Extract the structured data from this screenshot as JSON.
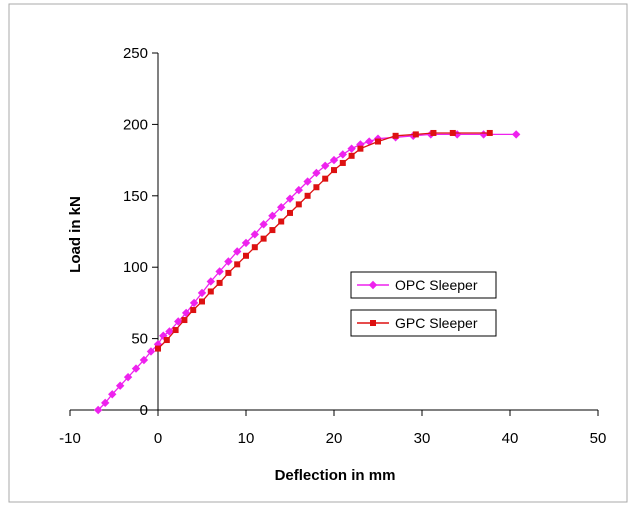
{
  "chart_data": {
    "type": "line",
    "title": "",
    "xlabel": "Deflection in mm",
    "ylabel": "Load in kN",
    "xlim": [
      -10,
      50
    ],
    "ylim": [
      0,
      250
    ],
    "xticks": [
      -10,
      0,
      10,
      20,
      30,
      40,
      50
    ],
    "yticks": [
      0,
      50,
      100,
      150,
      200,
      250
    ],
    "grid": false,
    "legend_position": "center-right",
    "series": [
      {
        "name": "OPC Sleeper",
        "color": "#ee22ee",
        "marker": "diamond",
        "points": [
          [
            -6.8,
            0
          ],
          [
            -6.0,
            5
          ],
          [
            -5.2,
            11
          ],
          [
            -4.3,
            17
          ],
          [
            -3.4,
            23
          ],
          [
            -2.5,
            29
          ],
          [
            -1.6,
            35
          ],
          [
            -0.8,
            41
          ],
          [
            0,
            46
          ],
          [
            0.6,
            52
          ],
          [
            1.3,
            55
          ],
          [
            2.3,
            62
          ],
          [
            3.2,
            68
          ],
          [
            4.1,
            75
          ],
          [
            5.0,
            82
          ],
          [
            6.0,
            90
          ],
          [
            7.0,
            97
          ],
          [
            8.0,
            104
          ],
          [
            9.0,
            111
          ],
          [
            10.0,
            117
          ],
          [
            11.0,
            123
          ],
          [
            12.0,
            130
          ],
          [
            13.0,
            136
          ],
          [
            14.0,
            142
          ],
          [
            15.0,
            148
          ],
          [
            16.0,
            154
          ],
          [
            17.0,
            160
          ],
          [
            18.0,
            166
          ],
          [
            19.0,
            171
          ],
          [
            20.0,
            175
          ],
          [
            21.0,
            179
          ],
          [
            22.0,
            183
          ],
          [
            23.0,
            186
          ],
          [
            24.0,
            188
          ],
          [
            25.0,
            190
          ],
          [
            27.0,
            191
          ],
          [
            29.0,
            192
          ],
          [
            31.0,
            193
          ],
          [
            34.0,
            193
          ],
          [
            37.0,
            193
          ],
          [
            40.7,
            193
          ]
        ]
      },
      {
        "name": "GPC Sleeper",
        "color": "#dd1111",
        "marker": "square",
        "points": [
          [
            0,
            43
          ],
          [
            1.0,
            49
          ],
          [
            2.0,
            56
          ],
          [
            3.0,
            63
          ],
          [
            4.0,
            70
          ],
          [
            5.0,
            76
          ],
          [
            6.0,
            83
          ],
          [
            7.0,
            89
          ],
          [
            8.0,
            96
          ],
          [
            9.0,
            102
          ],
          [
            10.0,
            108
          ],
          [
            11.0,
            114
          ],
          [
            12.0,
            120
          ],
          [
            13.0,
            126
          ],
          [
            14.0,
            132
          ],
          [
            15.0,
            138
          ],
          [
            16.0,
            144
          ],
          [
            17.0,
            150
          ],
          [
            18.0,
            156
          ],
          [
            19.0,
            162
          ],
          [
            20.0,
            168
          ],
          [
            21.0,
            173
          ],
          [
            22.0,
            178
          ],
          [
            23.0,
            183
          ],
          [
            25.0,
            188
          ],
          [
            27.0,
            192
          ],
          [
            29.3,
            193
          ],
          [
            31.3,
            194
          ],
          [
            33.5,
            194
          ],
          [
            37.7,
            194
          ]
        ]
      }
    ]
  }
}
